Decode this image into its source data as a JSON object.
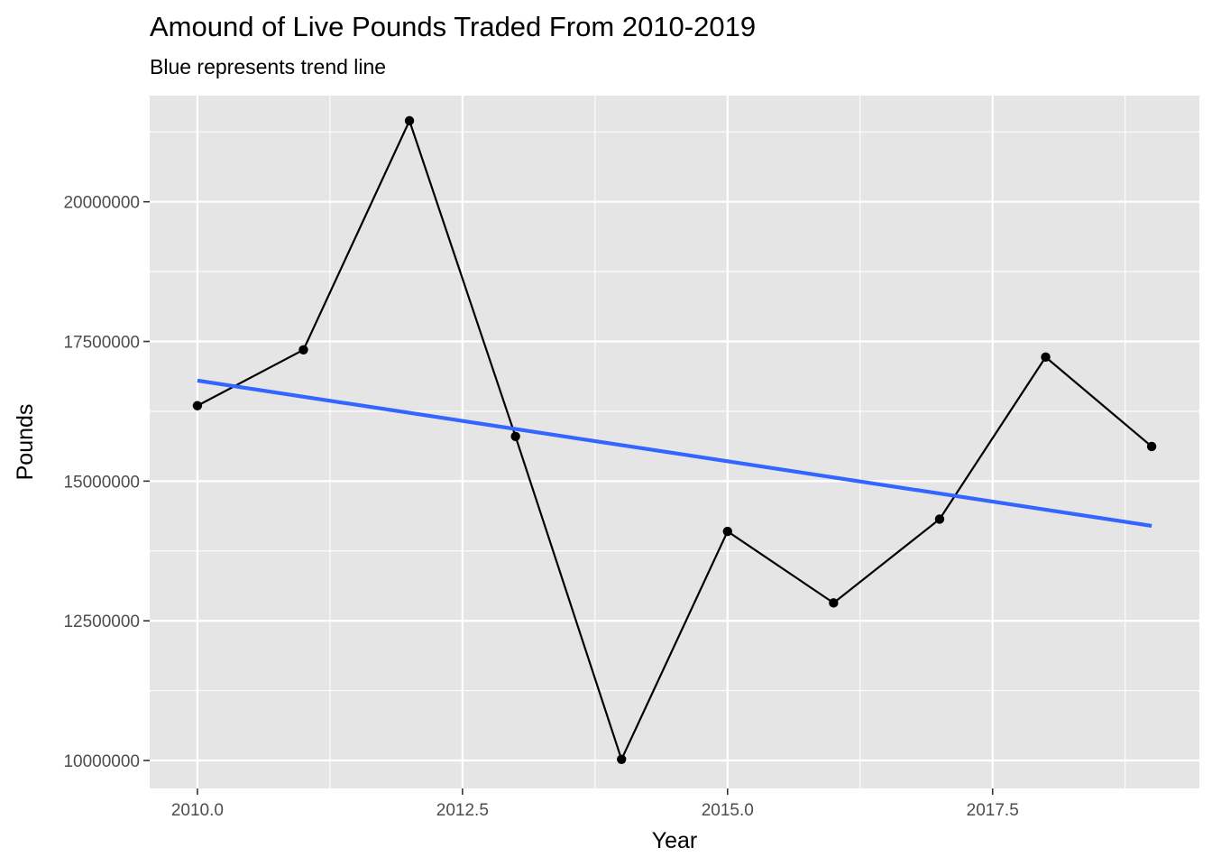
{
  "chart_data": {
    "type": "line",
    "title": "Amound of Live Pounds Traded From 2010-2019",
    "subtitle": "Blue represents trend line",
    "xlabel": "Year",
    "ylabel": "Pounds",
    "xlim": [
      2009.55,
      2019.45
    ],
    "ylim": [
      9500000,
      21900000
    ],
    "x_ticks": [
      2010.0,
      2012.5,
      2015.0,
      2017.5
    ],
    "x_tick_labels": [
      "2010.0",
      "2012.5",
      "2015.0",
      "2017.5"
    ],
    "x_minor_ticks": [
      2011.25,
      2013.75,
      2016.25,
      2018.75
    ],
    "y_ticks": [
      10000000,
      12500000,
      15000000,
      17500000,
      20000000
    ],
    "y_tick_labels": [
      "10000000",
      "12500000",
      "15000000",
      "17500000",
      "20000000"
    ],
    "y_minor_ticks": [
      11250000,
      13750000,
      16250000,
      18750000,
      21250000
    ],
    "grid": true,
    "legend": "none",
    "series": [
      {
        "x": [
          2010,
          2011,
          2012,
          2013,
          2014,
          2015,
          2016,
          2017,
          2018,
          2019
        ],
        "values": [
          16350000,
          17350000,
          21450000,
          15800000,
          10020000,
          14100000,
          12820000,
          14320000,
          17220000,
          15620000
        ],
        "color": "#000000",
        "markers": true
      }
    ],
    "trend_line": {
      "x": [
        2010,
        2019
      ],
      "values": [
        16800000,
        14200000
      ],
      "color": "#3366FF"
    },
    "colors": {
      "panel_background": "#E5E5E5",
      "grid": "#FFFFFF",
      "tick_text": "#4D4D4D",
      "series": "#000000",
      "trend": "#3366FF"
    }
  }
}
